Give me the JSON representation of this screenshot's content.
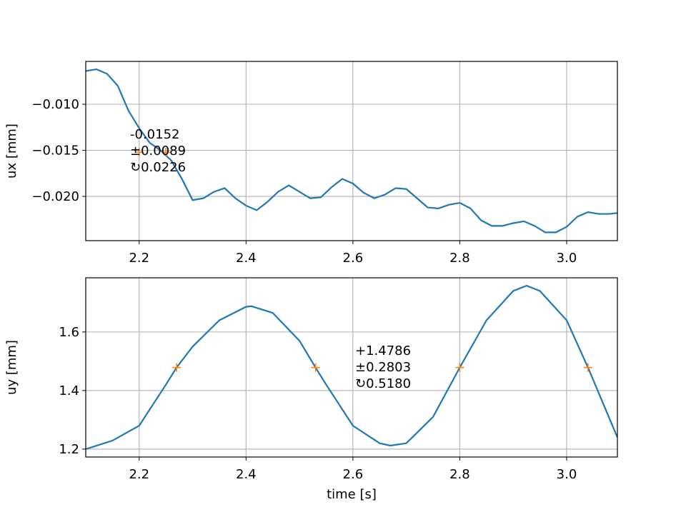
{
  "chart_data": [
    {
      "type": "line",
      "ylabel": "ux [mm]",
      "x": [
        2.1,
        2.12,
        2.14,
        2.16,
        2.18,
        2.2,
        2.22,
        2.24,
        2.26,
        2.28,
        2.3,
        2.32,
        2.34,
        2.36,
        2.38,
        2.4,
        2.42,
        2.44,
        2.46,
        2.48,
        2.5,
        2.52,
        2.54,
        2.56,
        2.58,
        2.6,
        2.62,
        2.64,
        2.66,
        2.68,
        2.7,
        2.72,
        2.74,
        2.76,
        2.78,
        2.8,
        2.82,
        2.84,
        2.86,
        2.88,
        2.9,
        2.92,
        2.94,
        2.96,
        2.98,
        3.0,
        3.02,
        3.04,
        3.06,
        3.08,
        3.095
      ],
      "series": [
        {
          "color": "#1f77b4",
          "values": [
            -0.0064,
            -0.0062,
            -0.0067,
            -0.008,
            -0.0107,
            -0.0126,
            -0.0142,
            -0.015,
            -0.0161,
            -0.0181,
            -0.0204,
            -0.0202,
            -0.0195,
            -0.0191,
            -0.0202,
            -0.021,
            -0.0215,
            -0.0206,
            -0.0195,
            -0.0188,
            -0.0195,
            -0.0202,
            -0.0201,
            -0.019,
            -0.0181,
            -0.0186,
            -0.0196,
            -0.0202,
            -0.0198,
            -0.0191,
            -0.0192,
            -0.0202,
            -0.0212,
            -0.0213,
            -0.0209,
            -0.0207,
            -0.0213,
            -0.0226,
            -0.0232,
            -0.0232,
            -0.0229,
            -0.0227,
            -0.0232,
            -0.0239,
            -0.0239,
            -0.0233,
            -0.0222,
            -0.0217,
            -0.0219,
            -0.0219,
            -0.0218
          ]
        }
      ],
      "markers": {
        "color": "#ff7f0e",
        "x": [
          2.2,
          2.25
        ],
        "values": [
          -0.0152,
          -0.0152
        ]
      },
      "annotation": [
        "-0.0152",
        "±0.0089",
        "↻0.0226"
      ],
      "xlim": [
        2.1,
        3.095
      ],
      "ylim": [
        -0.0248,
        -0.00535
      ],
      "xticks": [
        2.2,
        2.4,
        2.6,
        2.8,
        {
          "value": 3,
          "label": "3.0"
        }
      ],
      "yticks": [
        {
          "value": -0.01,
          "label": "−0.010"
        },
        {
          "value": -0.015,
          "label": "−0.015"
        },
        {
          "value": -0.02,
          "label": "−0.020"
        }
      ],
      "grid": true
    },
    {
      "type": "line",
      "xlabel": "time [s]",
      "ylabel": "uy [mm]",
      "x": [
        2.1,
        2.15,
        2.2,
        2.25,
        2.27,
        2.3,
        2.35,
        2.4,
        2.41,
        2.45,
        2.5,
        2.53,
        2.55,
        2.6,
        2.65,
        2.67,
        2.7,
        2.75,
        2.8,
        2.85,
        2.9,
        2.925,
        2.95,
        3.0,
        3.04,
        3.095
      ],
      "series": [
        {
          "color": "#1f77b4",
          "values": [
            1.2,
            1.229,
            1.28,
            1.42,
            1.4786,
            1.55,
            1.64,
            1.686,
            1.688,
            1.665,
            1.57,
            1.4786,
            1.42,
            1.28,
            1.22,
            1.212,
            1.22,
            1.31,
            1.4786,
            1.64,
            1.74,
            1.758,
            1.74,
            1.64,
            1.4786,
            1.24
          ]
        }
      ],
      "markers": {
        "color": "#ff7f0e",
        "x": [
          2.27,
          2.53,
          2.8,
          3.04
        ],
        "values": [
          1.4786,
          1.4786,
          1.4786,
          1.4786
        ]
      },
      "annotation": [
        "+1.4786",
        "±0.2803",
        "↻0.5180"
      ],
      "xlim": [
        2.1,
        3.095
      ],
      "ylim": [
        1.173,
        1.785
      ],
      "xticks": [
        2.2,
        2.4,
        2.6,
        2.8,
        {
          "value": 3,
          "label": "3.0"
        }
      ],
      "yticks": [
        1.6,
        1.4,
        1.2
      ],
      "grid": true
    }
  ]
}
